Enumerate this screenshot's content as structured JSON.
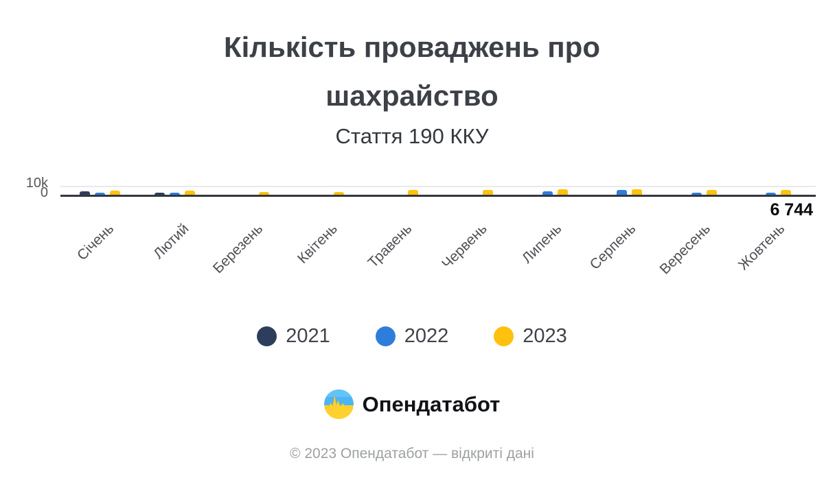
{
  "title": "Кількість проваджень про шахрайство",
  "subtitle": "Стаття 190 ККУ",
  "y_axis": {
    "top_tick": "10k",
    "zero_tick": "0"
  },
  "value_annotation": "6 744",
  "chart_data": {
    "type": "bar",
    "title": "Кількість проваджень про шахрайство",
    "subtitle": "Стаття 190 ККУ",
    "xlabel": "",
    "ylabel": "",
    "ylim": [
      0,
      10000
    ],
    "y_ticks": [
      "0",
      "10k"
    ],
    "grid": "single horizontal gridline at 10k",
    "legend_position": "bottom-center",
    "categories": [
      "Січень",
      "Лютий",
      "Березень",
      "Квітень",
      "Травень",
      "Червень",
      "Липень",
      "Серпень",
      "Вересень",
      "Жовтень"
    ],
    "series": [
      {
        "name": "2021",
        "color": "#2d3e5c",
        "values": [
          5200,
          3600,
          0,
          0,
          0,
          0,
          0,
          0,
          0,
          0
        ]
      },
      {
        "name": "2022",
        "color": "#2e7ddb",
        "values": [
          3600,
          3600,
          0,
          0,
          0,
          0,
          5300,
          6200,
          3900,
          4100
        ]
      },
      {
        "name": "2023",
        "color": "#ffc10d",
        "values": [
          6000,
          6000,
          4800,
          4800,
          6200,
          6700,
          7000,
          6800,
          6500,
          6744
        ]
      }
    ],
    "annotations": [
      {
        "text": "6 744",
        "series": "2023",
        "category": "Жовтень",
        "position": "below axis, right edge"
      }
    ]
  },
  "legend": {
    "items": [
      {
        "label": "2021",
        "color": "#2d3e5c"
      },
      {
        "label": "2022",
        "color": "#2e7ddb"
      },
      {
        "label": "2023",
        "color": "#ffc10d"
      }
    ]
  },
  "logo": {
    "text": "Опендатабот",
    "icon": "opendatabot-logo-icon",
    "icon_colors": {
      "sky": "#4db5f2",
      "field": "#ffd12e"
    }
  },
  "footer": {
    "text": "© 2023 Опендатабот — відкриті дані"
  }
}
